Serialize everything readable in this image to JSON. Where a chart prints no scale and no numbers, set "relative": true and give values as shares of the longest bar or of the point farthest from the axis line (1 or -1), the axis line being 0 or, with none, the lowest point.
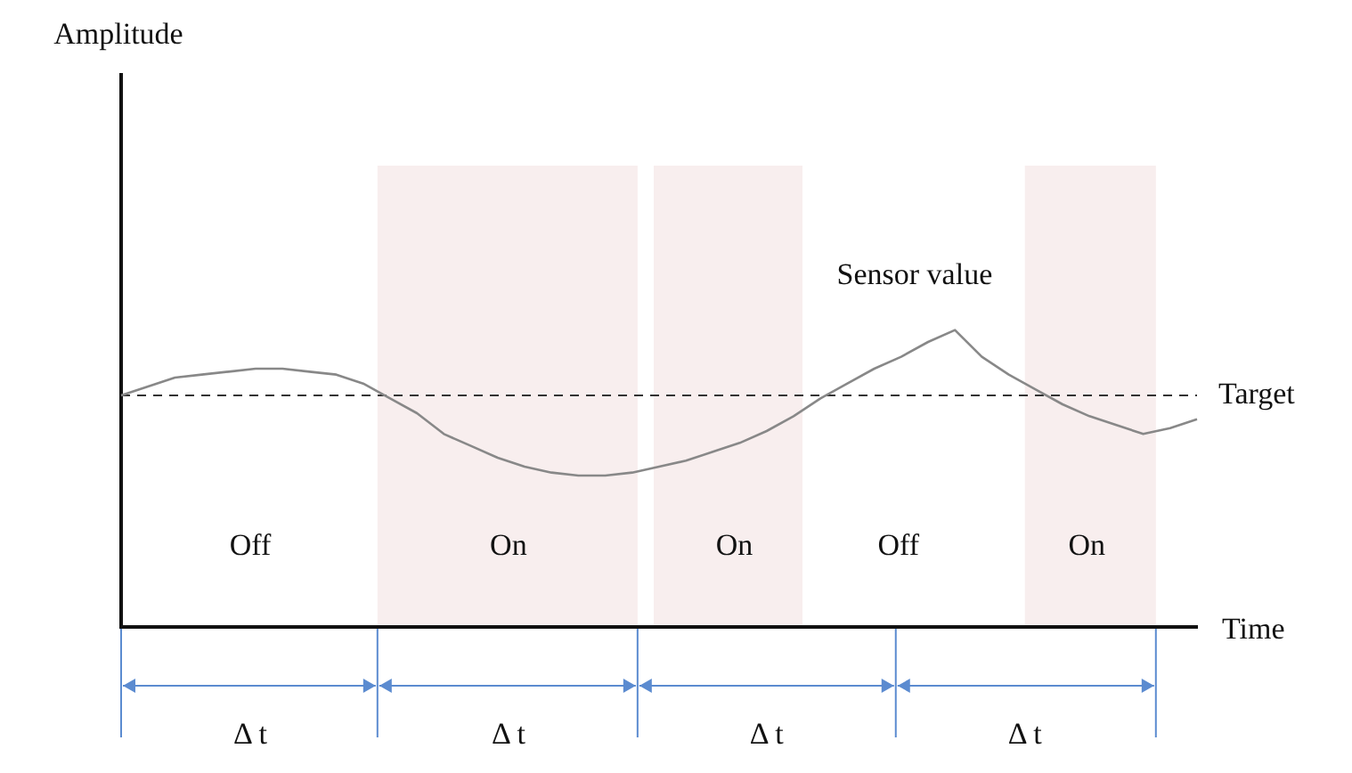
{
  "chart_data": {
    "type": "line",
    "relative": true,
    "xlabel": "Time",
    "tick_labels": false,
    "grid": false,
    "legend": false,
    "marker": "none",
    "categories": [
      null,
      null,
      null,
      null,
      null,
      null,
      null,
      null,
      null,
      null,
      null,
      null,
      null,
      null,
      null,
      null,
      null,
      null,
      null,
      null,
      null,
      null,
      null,
      null,
      null,
      null,
      null,
      null,
      null,
      null,
      null,
      null,
      null,
      null,
      null,
      null,
      null,
      null,
      null,
      null,
      null
    ],
    "series": [
      {
        "color": "#888888",
        "values": [
          0.78,
          0.81,
          0.84,
          0.85,
          0.86,
          0.87,
          0.87,
          0.86,
          0.85,
          0.82,
          0.77,
          0.72,
          0.65,
          0.61,
          0.57,
          0.54,
          0.52,
          0.51,
          0.51,
          0.52,
          0.54,
          0.56,
          0.59,
          0.62,
          0.66,
          0.71,
          0.77,
          0.82,
          0.87,
          0.91,
          0.96,
          1,
          0.91,
          0.85,
          0.8,
          0.75,
          0.71,
          0.68,
          0.65,
          0.67,
          0.7
        ]
      }
    ],
    "ref_lines": [
      {
        "axis": "y",
        "value": 0.78,
        "label": "Target",
        "line_style": "dashed",
        "color": "#333333"
      }
    ],
    "annotations": [
      "Sensor value",
      "Off",
      "On",
      "On",
      "Off",
      "On",
      "Δ t",
      "Δ t",
      "Δ t",
      "Δ t",
      "Amplitude"
    ]
  }
}
